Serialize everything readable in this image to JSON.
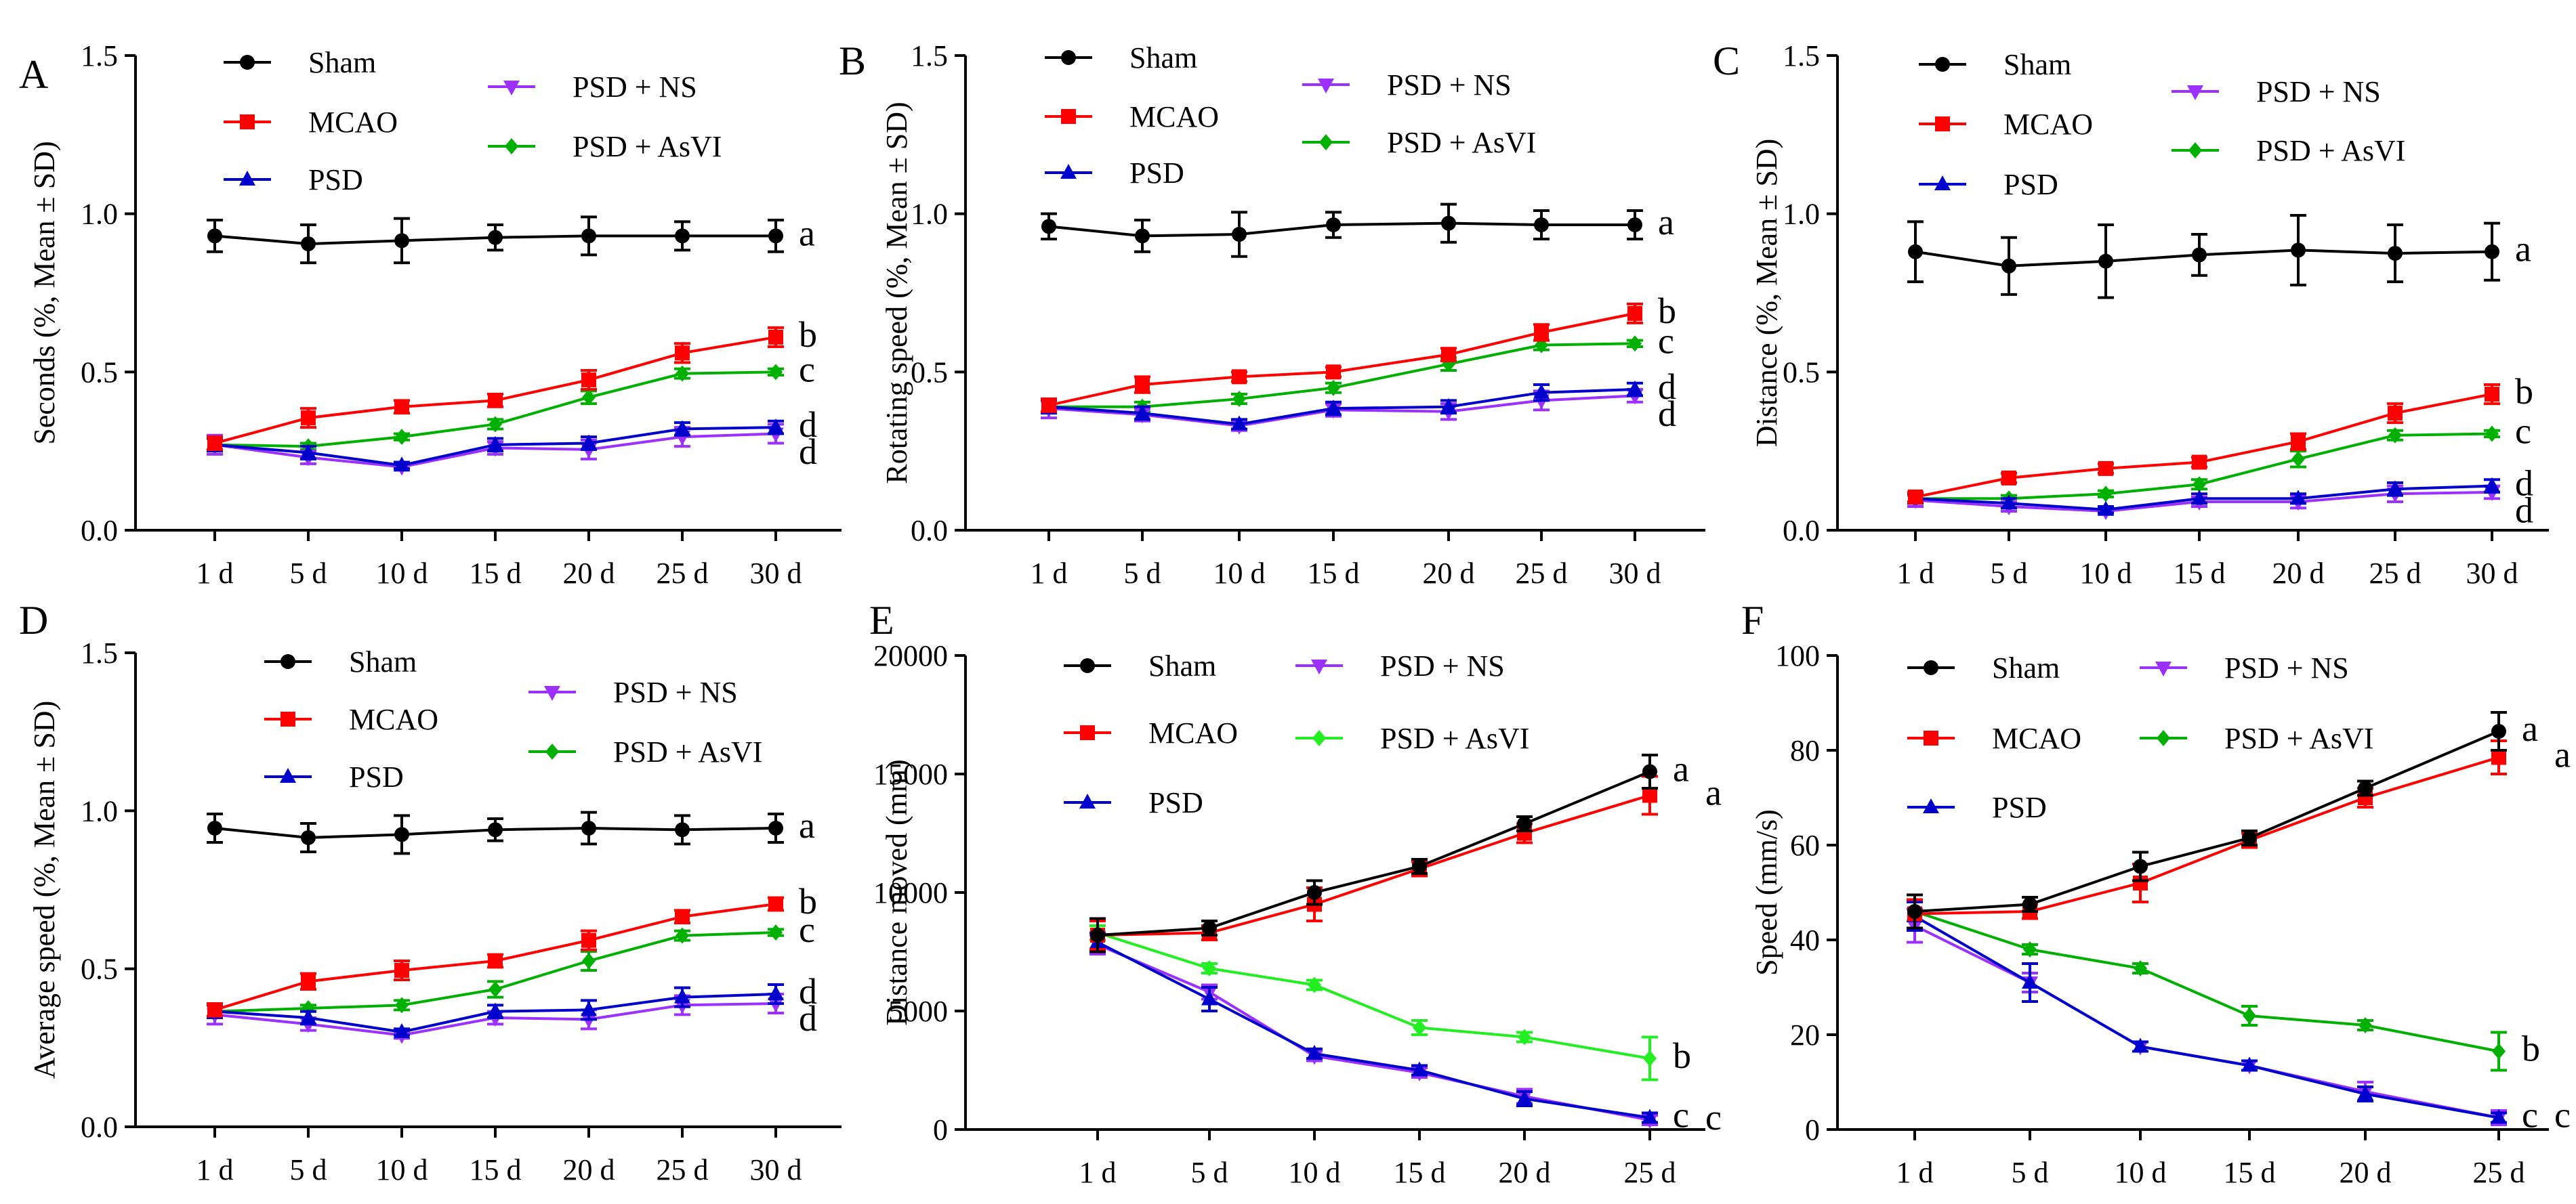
{
  "colors": {
    "Sham": "#000000",
    "MCAO": "#ff0000",
    "PSD": "#0000cc",
    "PSD + NS": "#9b30ff",
    "PSD + AsVI": "#00b000",
    "PSD + AsVI (E)": "#22ee22",
    "letter_d": "#ff00ff"
  },
  "chart_data": [
    {
      "panel": "A",
      "type": "line",
      "ylabel": "Seconds (%, Mean ± SD)",
      "categories": [
        "1 d",
        "5 d",
        "10 d",
        "15 d",
        "20 d",
        "25 d",
        "30 d"
      ],
      "ylim": [
        0,
        1.5
      ],
      "yticks": [
        "0.0",
        "0.5",
        "1.0",
        "1.5"
      ],
      "ytick_values": [
        0,
        0.5,
        1.0,
        1.5
      ],
      "series": [
        {
          "name": "Sham",
          "marker": "circle",
          "values": [
            0.93,
            0.905,
            0.915,
            0.925,
            0.93,
            0.93,
            0.93
          ],
          "errors": [
            0.05,
            0.06,
            0.07,
            0.04,
            0.06,
            0.045,
            0.05
          ],
          "letter": "a"
        },
        {
          "name": "MCAO",
          "marker": "square",
          "values": [
            0.275,
            0.355,
            0.39,
            0.41,
            0.475,
            0.56,
            0.61
          ],
          "errors": [
            0.02,
            0.03,
            0.02,
            0.02,
            0.03,
            0.03,
            0.03
          ],
          "letter": "b"
        },
        {
          "name": "PSD",
          "marker": "triangle-up",
          "values": [
            0.27,
            0.245,
            0.205,
            0.27,
            0.275,
            0.32,
            0.325
          ],
          "errors": [
            0.02,
            0.02,
            0.01,
            0.02,
            0.02,
            0.02,
            0.02
          ],
          "letter": "d"
        },
        {
          "name": "PSD + NS",
          "marker": "triangle-down",
          "values": [
            0.27,
            0.23,
            0.2,
            0.26,
            0.255,
            0.295,
            0.305
          ],
          "errors": [
            0.03,
            0.02,
            0.01,
            0.02,
            0.03,
            0.03,
            0.03
          ],
          "letter": "d"
        },
        {
          "name": "PSD + AsVI",
          "marker": "diamond",
          "values": [
            0.27,
            0.265,
            0.295,
            0.335,
            0.42,
            0.495,
            0.5
          ],
          "errors": [
            0.02,
            0.01,
            0.01,
            0.015,
            0.02,
            0.015,
            0.01
          ],
          "letter": "c"
        }
      ]
    },
    {
      "panel": "B",
      "type": "line",
      "ylabel": "Rotating speed (%, Mean ± SD)",
      "categories": [
        "1 d",
        "5 d",
        "10 d",
        "15 d",
        "20 d",
        "25 d",
        "30 d"
      ],
      "ylim": [
        0,
        1.5
      ],
      "yticks": [
        "0.0",
        "0.5",
        "1.0",
        "1.5"
      ],
      "ytick_values": [
        0,
        0.5,
        1.0,
        1.5
      ],
      "series": [
        {
          "name": "Sham",
          "marker": "circle",
          "values": [
            0.96,
            0.93,
            0.935,
            0.965,
            0.97,
            0.965,
            0.965
          ],
          "errors": [
            0.04,
            0.05,
            0.07,
            0.04,
            0.06,
            0.045,
            0.045
          ],
          "letter": "a"
        },
        {
          "name": "MCAO",
          "marker": "square",
          "values": [
            0.395,
            0.46,
            0.485,
            0.5,
            0.555,
            0.625,
            0.685
          ],
          "errors": [
            0.02,
            0.025,
            0.015,
            0.015,
            0.02,
            0.025,
            0.03
          ],
          "letter": "b"
        },
        {
          "name": "PSD",
          "marker": "triangle-up",
          "values": [
            0.39,
            0.37,
            0.335,
            0.385,
            0.39,
            0.435,
            0.445
          ],
          "errors": [
            0.02,
            0.02,
            0.015,
            0.02,
            0.02,
            0.025,
            0.02
          ],
          "letter": "d"
        },
        {
          "name": "PSD + NS",
          "marker": "triangle-down",
          "values": [
            0.385,
            0.365,
            0.33,
            0.38,
            0.375,
            0.41,
            0.425
          ],
          "errors": [
            0.03,
            0.02,
            0.015,
            0.02,
            0.025,
            0.03,
            0.02
          ],
          "letter": "d"
        },
        {
          "name": "PSD + AsVI",
          "marker": "diamond",
          "values": [
            0.39,
            0.39,
            0.415,
            0.45,
            0.525,
            0.585,
            0.59
          ],
          "errors": [
            0.02,
            0.015,
            0.015,
            0.015,
            0.02,
            0.015,
            0.01
          ],
          "letter": "c"
        }
      ]
    },
    {
      "panel": "C",
      "type": "line",
      "ylabel": "Distance (%, Mean ± SD)",
      "categories": [
        "1 d",
        "5 d",
        "10 d",
        "15 d",
        "20 d",
        "25 d",
        "30 d"
      ],
      "ylim": [
        0,
        1.5
      ],
      "yticks": [
        "0.0",
        "0.5",
        "1.0",
        "1.5"
      ],
      "ytick_values": [
        0,
        0.5,
        1.0,
        1.5
      ],
      "series": [
        {
          "name": "Sham",
          "marker": "circle",
          "values": [
            0.88,
            0.835,
            0.85,
            0.87,
            0.885,
            0.875,
            0.88
          ],
          "errors": [
            0.095,
            0.09,
            0.115,
            0.065,
            0.11,
            0.09,
            0.09
          ],
          "letter": "a"
        },
        {
          "name": "MCAO",
          "marker": "square",
          "values": [
            0.105,
            0.165,
            0.195,
            0.215,
            0.28,
            0.37,
            0.43
          ],
          "errors": [
            0.015,
            0.015,
            0.015,
            0.015,
            0.025,
            0.03,
            0.03
          ],
          "letter": "b"
        },
        {
          "name": "PSD",
          "marker": "triangle-up",
          "values": [
            0.1,
            0.085,
            0.065,
            0.1,
            0.1,
            0.13,
            0.14
          ],
          "errors": [
            0.015,
            0.015,
            0.01,
            0.015,
            0.015,
            0.02,
            0.02
          ],
          "letter": "d"
        },
        {
          "name": "PSD + NS",
          "marker": "triangle-down",
          "values": [
            0.095,
            0.075,
            0.06,
            0.09,
            0.09,
            0.115,
            0.12
          ],
          "errors": [
            0.02,
            0.015,
            0.01,
            0.015,
            0.02,
            0.025,
            0.02
          ],
          "letter": "d"
        },
        {
          "name": "PSD + AsVI",
          "marker": "diamond",
          "values": [
            0.1,
            0.1,
            0.115,
            0.145,
            0.225,
            0.3,
            0.305
          ],
          "errors": [
            0.01,
            0.01,
            0.01,
            0.015,
            0.025,
            0.015,
            0.01
          ],
          "letter": "c"
        }
      ]
    },
    {
      "panel": "D",
      "type": "line",
      "ylabel": "Average speed (%, Mean ± SD)",
      "categories": [
        "1 d",
        "5 d",
        "10 d",
        "15 d",
        "20 d",
        "25 d",
        "30 d"
      ],
      "ylim": [
        0,
        1.5
      ],
      "yticks": [
        "0.0",
        "0.5",
        "1.0",
        "1.5"
      ],
      "ytick_values": [
        0,
        0.5,
        1.0,
        1.5
      ],
      "series": [
        {
          "name": "Sham",
          "marker": "circle",
          "values": [
            0.945,
            0.915,
            0.925,
            0.94,
            0.945,
            0.94,
            0.945
          ],
          "errors": [
            0.045,
            0.045,
            0.06,
            0.035,
            0.05,
            0.045,
            0.045
          ],
          "letter": "a"
        },
        {
          "name": "MCAO",
          "marker": "square",
          "values": [
            0.37,
            0.46,
            0.495,
            0.525,
            0.59,
            0.665,
            0.705
          ],
          "errors": [
            0.02,
            0.025,
            0.03,
            0.02,
            0.03,
            0.02,
            0.02
          ],
          "letter": "b"
        },
        {
          "name": "PSD",
          "marker": "triangle-up",
          "values": [
            0.365,
            0.345,
            0.3,
            0.365,
            0.37,
            0.41,
            0.42
          ],
          "errors": [
            0.02,
            0.02,
            0.01,
            0.02,
            0.03,
            0.03,
            0.03
          ],
          "letter": "d"
        },
        {
          "name": "PSD + NS",
          "marker": "triangle-down",
          "values": [
            0.355,
            0.325,
            0.29,
            0.345,
            0.34,
            0.385,
            0.39
          ],
          "errors": [
            0.03,
            0.02,
            0.01,
            0.02,
            0.03,
            0.03,
            0.03
          ],
          "letter": "d"
        },
        {
          "name": "PSD + AsVI",
          "marker": "diamond",
          "values": [
            0.365,
            0.375,
            0.385,
            0.435,
            0.525,
            0.605,
            0.615
          ],
          "errors": [
            0.02,
            0.01,
            0.015,
            0.025,
            0.03,
            0.015,
            0.01
          ],
          "letter": "c"
        }
      ]
    },
    {
      "panel": "E",
      "type": "line",
      "ylabel": "Distance moved (mm)",
      "categories": [
        "1 d",
        "5 d",
        "10 d",
        "15 d",
        "20 d",
        "25 d"
      ],
      "ylim": [
        0,
        20000
      ],
      "yticks": [
        "0",
        "5000",
        "10000",
        "15000",
        "20000"
      ],
      "ytick_values": [
        0,
        5000,
        10000,
        15000,
        20000
      ],
      "series": [
        {
          "name": "Sham",
          "marker": "circle",
          "values": [
            8200,
            8500,
            10000,
            11100,
            12900,
            15100
          ],
          "errors": [
            700,
            300,
            500,
            300,
            300,
            700
          ],
          "letter": "a"
        },
        {
          "name": "MCAO",
          "marker": "square",
          "values": [
            8200,
            8300,
            9500,
            11000,
            12500,
            14100
          ],
          "errors": [
            600,
            300,
            700,
            300,
            400,
            800
          ],
          "letter": "a"
        },
        {
          "name": "PSD",
          "marker": "triangle-up",
          "values": [
            7900,
            5500,
            3200,
            2500,
            1300,
            500
          ],
          "errors": [
            400,
            500,
            200,
            200,
            300,
            200
          ],
          "letter": "c"
        },
        {
          "name": "PSD + NS",
          "marker": "triangle-down",
          "values": [
            7800,
            5800,
            3100,
            2400,
            1400,
            400
          ],
          "errors": [
            400,
            300,
            200,
            200,
            300,
            200
          ],
          "letter": "c"
        },
        {
          "name": "PSD + AsVI",
          "marker": "diamond",
          "values": [
            8300,
            6800,
            6100,
            4300,
            3900,
            3000
          ],
          "errors": [
            300,
            200,
            200,
            300,
            200,
            900
          ],
          "letter": "b"
        }
      ]
    },
    {
      "panel": "F",
      "type": "line",
      "ylabel": "Speed (mm/s)",
      "categories": [
        "1 d",
        "5 d",
        "10 d",
        "15 d",
        "20 d",
        "25 d"
      ],
      "ylim": [
        0,
        100
      ],
      "yticks": [
        "0",
        "20",
        "40",
        "60",
        "80",
        "100"
      ],
      "ytick_values": [
        0,
        20,
        40,
        60,
        80,
        100
      ],
      "series": [
        {
          "name": "Sham",
          "marker": "circle",
          "values": [
            46,
            47.5,
            55.5,
            61.5,
            72,
            84
          ],
          "errors": [
            3.5,
            1.5,
            3,
            1.5,
            1.5,
            4
          ],
          "letter": "a"
        },
        {
          "name": "MCAO",
          "marker": "square",
          "values": [
            45.5,
            46,
            52,
            61,
            70,
            78.5
          ],
          "errors": [
            3,
            1.5,
            4,
            1.5,
            2,
            3.5
          ],
          "letter": "a"
        },
        {
          "name": "PSD",
          "marker": "triangle-up",
          "values": [
            45,
            31,
            17.5,
            13.5,
            7.5,
            2.5
          ],
          "errors": [
            3,
            4,
            1,
            1,
            1.5,
            1
          ],
          "letter": "c"
        },
        {
          "name": "PSD + NS",
          "marker": "triangle-down",
          "values": [
            43,
            31,
            17.5,
            13.5,
            8,
            2.5
          ],
          "errors": [
            3.5,
            2,
            1,
            1,
            2,
            1.5
          ],
          "letter": "c"
        },
        {
          "name": "PSD + AsVI",
          "marker": "diamond",
          "values": [
            46,
            38,
            34,
            24,
            22,
            16.5
          ],
          "errors": [
            2,
            1,
            1,
            2,
            1,
            4
          ],
          "letter": "b"
        }
      ]
    }
  ]
}
